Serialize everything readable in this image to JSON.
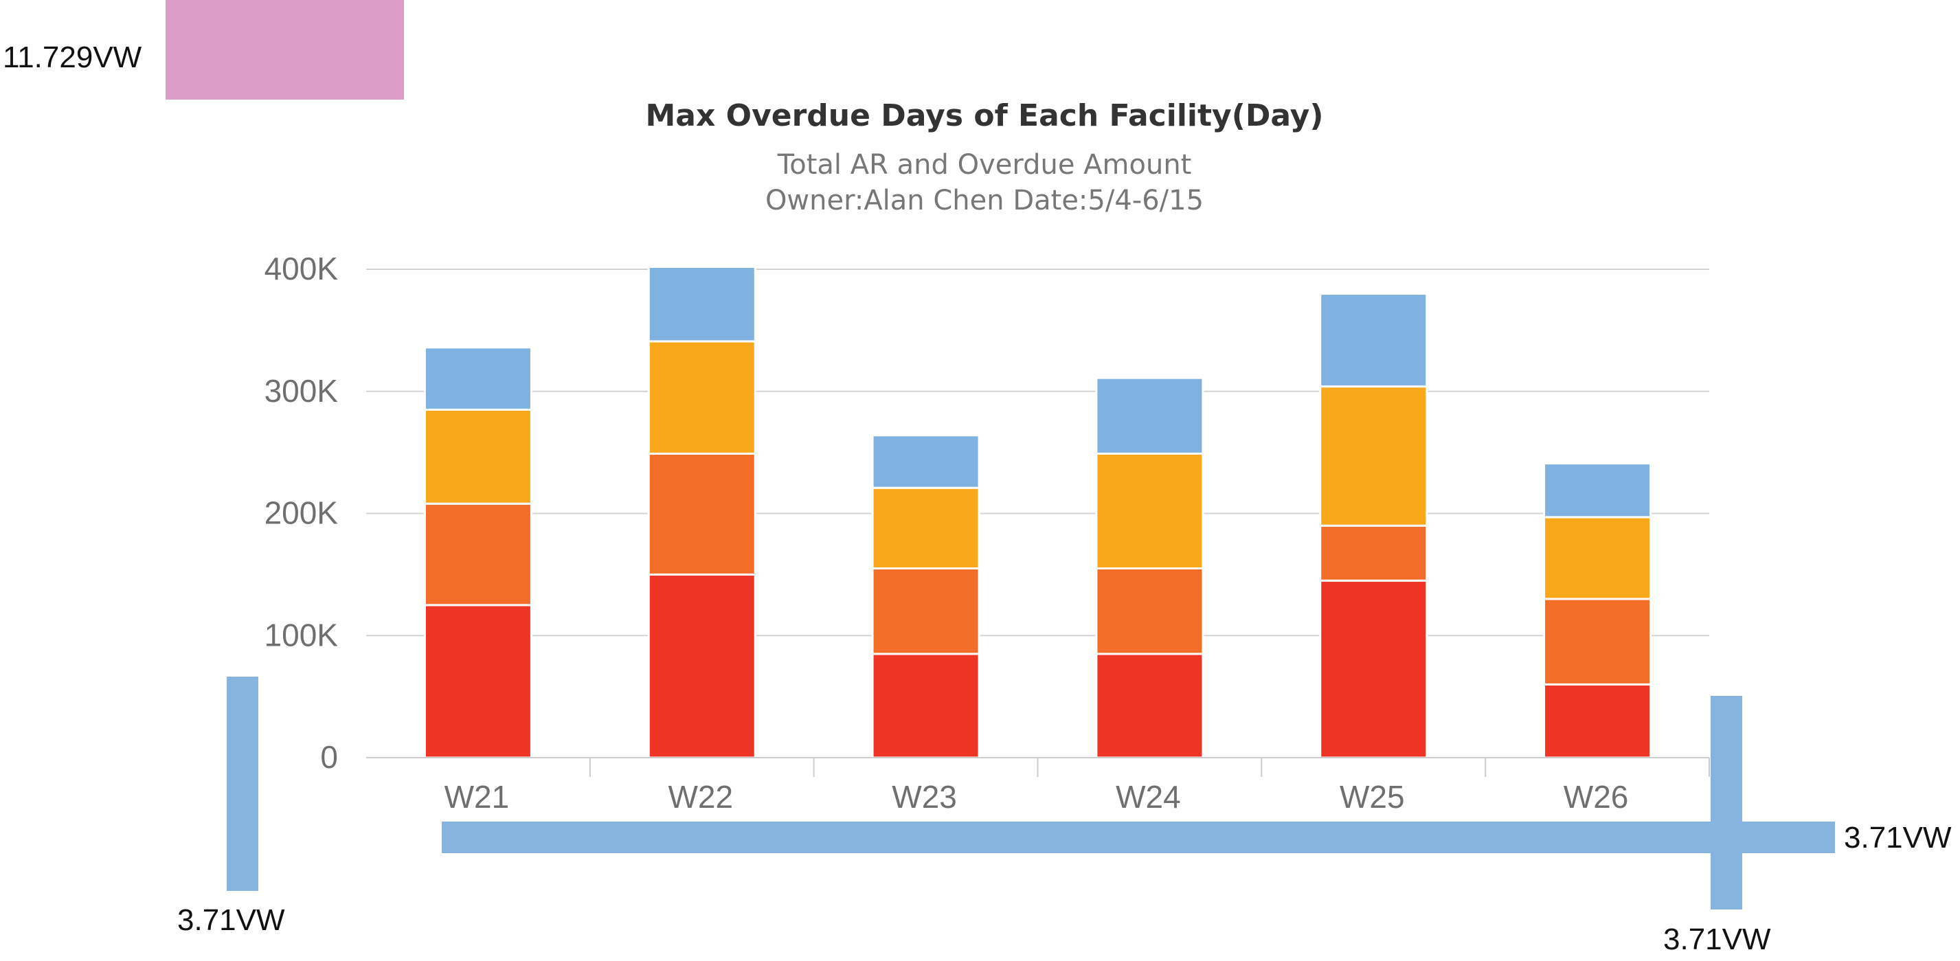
{
  "chart_data": {
    "type": "bar",
    "stacked": true,
    "title": "Max Overdue Days of Each Facility(Day)",
    "subtitle": "Total AR and Overdue Amount",
    "subtitle2": "Owner:Alan Chen   Date:5/4-6/15",
    "xlabel": "",
    "ylabel": "",
    "categories": [
      "W21",
      "W22",
      "W23",
      "W24",
      "W25",
      "W26"
    ],
    "ylim": [
      0,
      400000
    ],
    "y_ticks": [
      {
        "value": 0,
        "label": "0"
      },
      {
        "value": 100000,
        "label": "100K"
      },
      {
        "value": 200000,
        "label": "200K"
      },
      {
        "value": 300000,
        "label": "300K"
      },
      {
        "value": 400000,
        "label": "400K"
      }
    ],
    "grid": true,
    "legend": "none",
    "series": [
      {
        "color": "#ee3424",
        "values": [
          125000,
          150000,
          85000,
          85000,
          145000,
          60000
        ]
      },
      {
        "color": "#f26d27",
        "values": [
          83000,
          99000,
          70000,
          70000,
          45000,
          70000
        ]
      },
      {
        "color": "#f9a81c",
        "values": [
          77000,
          92000,
          66000,
          94000,
          114000,
          67000
        ]
      },
      {
        "color": "#7fb2e0",
        "values": [
          51000,
          61000,
          43000,
          62000,
          76000,
          44000
        ]
      }
    ]
  },
  "annotations": {
    "top_left_label": "11.729VW",
    "top_left_swatch_color": "#dc9ec8",
    "left_bar_label": "3.71VW",
    "bottom_bar_label": "3.71VW",
    "right_bar_label": "3.71VW",
    "bar_color": "#86b3df"
  }
}
